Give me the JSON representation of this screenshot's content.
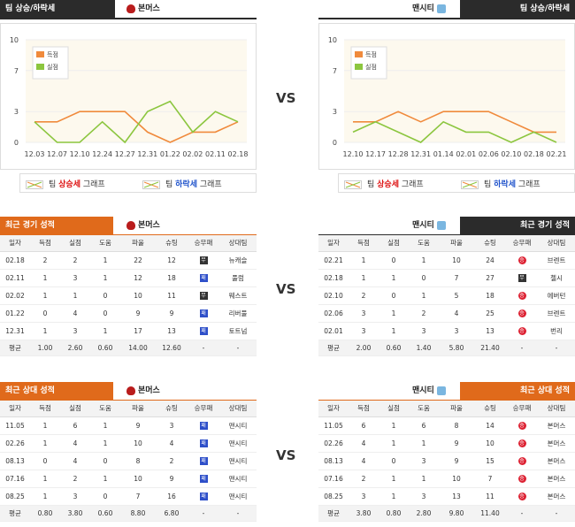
{
  "left_trend": {
    "header": "팀 상승/하락세",
    "team": "본머스",
    "y_ticks": [
      "10",
      "7",
      "3",
      "0"
    ],
    "x_labels": [
      "12.03",
      "12.07",
      "12.10",
      "12.24",
      "12.27",
      "12.31",
      "01.22",
      "02.02",
      "02.11",
      "02.18"
    ],
    "legend_score": "득점",
    "legend_concede": "실점",
    "legend_up_prefix": "팀 ",
    "legend_up_word": "상승세",
    "legend_up_suffix": " 그래프",
    "legend_down_prefix": "팀 ",
    "legend_down_word": "하락세",
    "legend_down_suffix": " 그래프"
  },
  "right_trend": {
    "header": "팀 상승/하락세",
    "team": "맨시티",
    "y_ticks": [
      "10",
      "7",
      "3",
      "0"
    ],
    "x_labels": [
      "12.10",
      "12.17",
      "12.28",
      "12.31",
      "01.14",
      "02.01",
      "02.06",
      "02.10",
      "02.18",
      "02.21"
    ],
    "legend_score": "득점",
    "legend_concede": "실점",
    "legend_up_prefix": "팀 ",
    "legend_up_word": "상승세",
    "legend_up_suffix": " 그래프",
    "legend_down_prefix": "팀 ",
    "legend_down_word": "하락세",
    "legend_down_suffix": " 그래프"
  },
  "chart_data": [
    {
      "type": "line",
      "x": [
        "12.03",
        "12.07",
        "12.10",
        "12.24",
        "12.27",
        "12.31",
        "01.22",
        "02.02",
        "02.11",
        "02.18"
      ],
      "ylim": [
        0,
        10
      ],
      "series": [
        {
          "name": "득점",
          "color": "#f08a3c",
          "values": [
            2,
            2,
            3,
            3,
            3,
            1,
            0,
            1,
            1,
            2
          ]
        },
        {
          "name": "실점",
          "color": "#8cc63f",
          "values": [
            2,
            0,
            0,
            2,
            0,
            3,
            4,
            1,
            3,
            2
          ]
        }
      ]
    },
    {
      "type": "line",
      "x": [
        "12.10",
        "12.17",
        "12.28",
        "12.31",
        "01.14",
        "02.01",
        "02.06",
        "02.10",
        "02.18",
        "02.21"
      ],
      "ylim": [
        0,
        10
      ],
      "series": [
        {
          "name": "득점",
          "color": "#f08a3c",
          "values": [
            2,
            2,
            3,
            2,
            3,
            3,
            3,
            2,
            1,
            1
          ]
        },
        {
          "name": "실점",
          "color": "#8cc63f",
          "values": [
            1,
            2,
            1,
            0,
            2,
            1,
            1,
            0,
            1,
            0
          ]
        }
      ]
    }
  ],
  "vs": "VS",
  "recent_left": {
    "header": "최근 경기 성적",
    "team": "본머스",
    "columns": [
      "일자",
      "득점",
      "실점",
      "도움",
      "파울",
      "슈팅",
      "승무패",
      "상대팀"
    ],
    "rows": [
      [
        "02.18",
        "2",
        "2",
        "1",
        "22",
        "12",
        "D",
        "뉴캐슬"
      ],
      [
        "02.11",
        "1",
        "3",
        "1",
        "12",
        "18",
        "L",
        "풀럼"
      ],
      [
        "02.02",
        "1",
        "1",
        "0",
        "10",
        "11",
        "D",
        "웨스트"
      ],
      [
        "01.22",
        "0",
        "4",
        "0",
        "9",
        "9",
        "L",
        "리버풀"
      ],
      [
        "12.31",
        "1",
        "3",
        "1",
        "17",
        "13",
        "L",
        "토트넘"
      ]
    ],
    "avg": [
      "평균",
      "1.00",
      "2.60",
      "0.60",
      "14.00",
      "12.60",
      "-",
      "-"
    ]
  },
  "recent_right": {
    "header": "최근 경기 성적",
    "team": "맨시티",
    "columns": [
      "일자",
      "득점",
      "실점",
      "도움",
      "파울",
      "슈팅",
      "승무패",
      "상대팀"
    ],
    "rows": [
      [
        "02.21",
        "1",
        "0",
        "1",
        "10",
        "24",
        "W",
        "브렌트"
      ],
      [
        "02.18",
        "1",
        "1",
        "0",
        "7",
        "27",
        "D",
        "첼시"
      ],
      [
        "02.10",
        "2",
        "0",
        "1",
        "5",
        "18",
        "W",
        "에버턴"
      ],
      [
        "02.06",
        "3",
        "1",
        "2",
        "4",
        "25",
        "W",
        "브렌트"
      ],
      [
        "02.01",
        "3",
        "1",
        "3",
        "3",
        "13",
        "W",
        "번리"
      ]
    ],
    "avg": [
      "평균",
      "2.00",
      "0.60",
      "1.40",
      "5.80",
      "21.40",
      "-",
      "-"
    ]
  },
  "h2h_left": {
    "header": "최근 상대 성적",
    "team": "본머스",
    "columns": [
      "일자",
      "득점",
      "실점",
      "도움",
      "파울",
      "슈팅",
      "승무패",
      "상대팀"
    ],
    "rows": [
      [
        "11.05",
        "1",
        "6",
        "1",
        "9",
        "3",
        "L",
        "맨시티"
      ],
      [
        "02.26",
        "1",
        "4",
        "1",
        "10",
        "4",
        "L",
        "맨시티"
      ],
      [
        "08.13",
        "0",
        "4",
        "0",
        "8",
        "2",
        "L",
        "맨시티"
      ],
      [
        "07.16",
        "1",
        "2",
        "1",
        "10",
        "9",
        "L",
        "맨시티"
      ],
      [
        "08.25",
        "1",
        "3",
        "0",
        "7",
        "16",
        "L",
        "맨시티"
      ]
    ],
    "avg": [
      "평균",
      "0.80",
      "3.80",
      "0.60",
      "8.80",
      "6.80",
      "-",
      "-"
    ]
  },
  "h2h_right": {
    "header": "최근 상대 성적",
    "team": "맨시티",
    "columns": [
      "일자",
      "득점",
      "실점",
      "도움",
      "파울",
      "슈팅",
      "승무패",
      "상대팀"
    ],
    "rows": [
      [
        "11.05",
        "6",
        "1",
        "6",
        "8",
        "14",
        "W",
        "본머스"
      ],
      [
        "02.26",
        "4",
        "1",
        "1",
        "9",
        "10",
        "W",
        "본머스"
      ],
      [
        "08.13",
        "4",
        "0",
        "3",
        "9",
        "15",
        "W",
        "본머스"
      ],
      [
        "07.16",
        "2",
        "1",
        "1",
        "10",
        "7",
        "W",
        "본머스"
      ],
      [
        "08.25",
        "3",
        "1",
        "3",
        "13",
        "11",
        "W",
        "본머스"
      ]
    ],
    "avg": [
      "평균",
      "3.80",
      "0.80",
      "2.80",
      "9.80",
      "11.40",
      "-",
      "-"
    ]
  },
  "result_glyphs": {
    "W": "승",
    "D": "무",
    "L": "패"
  }
}
